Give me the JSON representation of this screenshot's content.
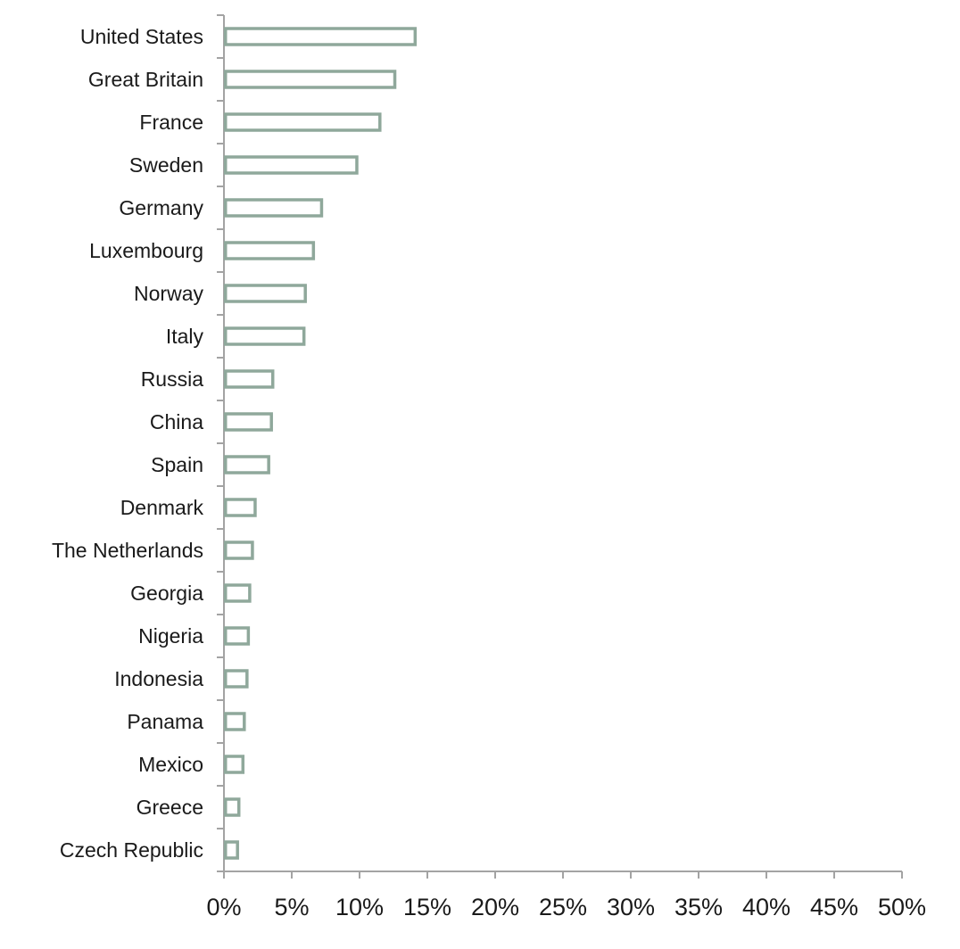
{
  "chart_data": {
    "type": "bar",
    "orientation": "horizontal",
    "title": "",
    "xlabel": "",
    "ylabel": "",
    "categories": [
      "United States",
      "Great Britain",
      "France",
      "Sweden",
      "Germany",
      "Luxembourg",
      "Norway",
      "Italy",
      "Russia",
      "China",
      "Spain",
      "Denmark",
      "The Netherlands",
      "Georgia",
      "Nigeria",
      "Indonesia",
      "Panama",
      "Mexico",
      "Greece",
      "Czech Republic"
    ],
    "values": [
      14.1,
      12.6,
      11.5,
      9.8,
      7.2,
      6.6,
      6.0,
      5.9,
      3.6,
      3.5,
      3.3,
      2.3,
      2.1,
      1.9,
      1.8,
      1.7,
      1.5,
      1.4,
      1.1,
      1.0
    ],
    "xlim": [
      0,
      50
    ],
    "xticks": [
      "0%",
      "5%",
      "10%",
      "15%",
      "20%",
      "25%",
      "30%",
      "35%",
      "40%",
      "45%",
      "50%"
    ],
    "value_unit": "%",
    "bar_style": "outlined",
    "bar_color": "#8fa89b",
    "grid": false,
    "legend": "none"
  }
}
